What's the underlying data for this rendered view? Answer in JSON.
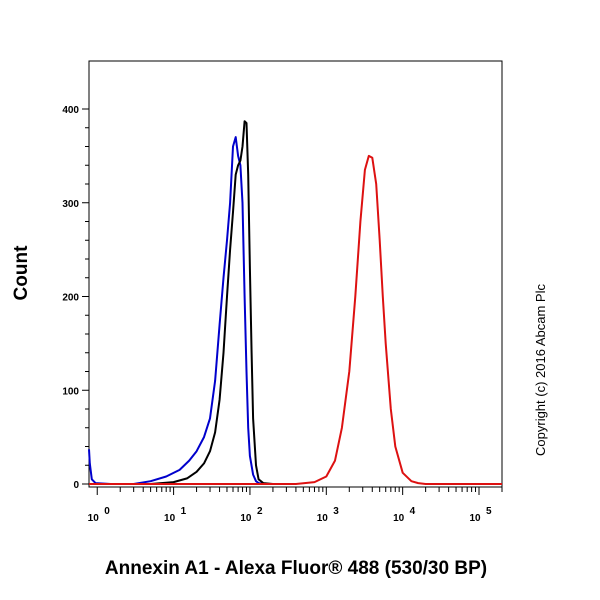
{
  "chart_data": {
    "type": "line",
    "title": "",
    "xlabel": "Annexin A1 - Alexa Fluor® 488 (530/30 BP)",
    "ylabel": "Count",
    "x_scale": "log",
    "xlim": [
      0.78,
      200000
    ],
    "ylim": [
      0,
      400
    ],
    "x_ticks": [
      {
        "value": 1,
        "label": "10",
        "exp": "0"
      },
      {
        "value": 10,
        "label": "10",
        "exp": "1"
      },
      {
        "value": 100,
        "label": "10",
        "exp": "2"
      },
      {
        "value": 1000,
        "label": "10",
        "exp": "3"
      },
      {
        "value": 10000,
        "label": "10",
        "exp": "4"
      },
      {
        "value": 100000,
        "label": "10",
        "exp": "5"
      }
    ],
    "y_ticks": [
      {
        "value": 0,
        "label": "0"
      },
      {
        "value": 100,
        "label": "100"
      },
      {
        "value": 200,
        "label": "200"
      },
      {
        "value": 300,
        "label": "300"
      },
      {
        "value": 400,
        "label": "400"
      }
    ],
    "grid": false,
    "legend": "none",
    "series": [
      {
        "color": "#0000cc",
        "x": [
          0.78,
          0.8,
          0.85,
          0.95,
          1.5,
          3,
          5,
          8,
          12,
          16,
          20,
          25,
          30,
          35,
          40,
          45,
          50,
          55,
          60,
          65,
          70,
          75,
          80,
          85,
          90,
          95,
          100,
          110,
          120,
          130,
          150,
          200
        ],
        "y": [
          37,
          22,
          5,
          1,
          0,
          0,
          3,
          8,
          15,
          25,
          35,
          50,
          70,
          110,
          170,
          220,
          260,
          300,
          360,
          370,
          350,
          340,
          300,
          200,
          120,
          60,
          30,
          10,
          3,
          1,
          0,
          0
        ]
      },
      {
        "color": "#000000",
        "x": [
          0.78,
          2,
          5,
          10,
          15,
          20,
          25,
          30,
          35,
          40,
          45,
          50,
          55,
          60,
          65,
          70,
          75,
          80,
          85,
          90,
          95,
          100,
          105,
          110,
          120,
          130,
          150,
          200
        ],
        "y": [
          0,
          0,
          0,
          2,
          6,
          13,
          22,
          35,
          55,
          90,
          140,
          200,
          250,
          290,
          330,
          340,
          345,
          360,
          387,
          385,
          330,
          230,
          140,
          70,
          20,
          5,
          1,
          0
        ]
      },
      {
        "color": "#dd1111",
        "x": [
          0.78,
          100,
          400,
          700,
          1000,
          1300,
          1600,
          2000,
          2400,
          2800,
          3200,
          3600,
          4000,
          4500,
          5000,
          5500,
          6000,
          7000,
          8000,
          10000,
          13000,
          16000,
          20000,
          200000
        ],
        "y": [
          0,
          0,
          0,
          2,
          8,
          25,
          60,
          120,
          200,
          280,
          335,
          350,
          348,
          320,
          260,
          200,
          150,
          80,
          40,
          12,
          3,
          1,
          0,
          0
        ]
      }
    ]
  },
  "copyright": "Copyright (c) 2016 Abcam Plc"
}
